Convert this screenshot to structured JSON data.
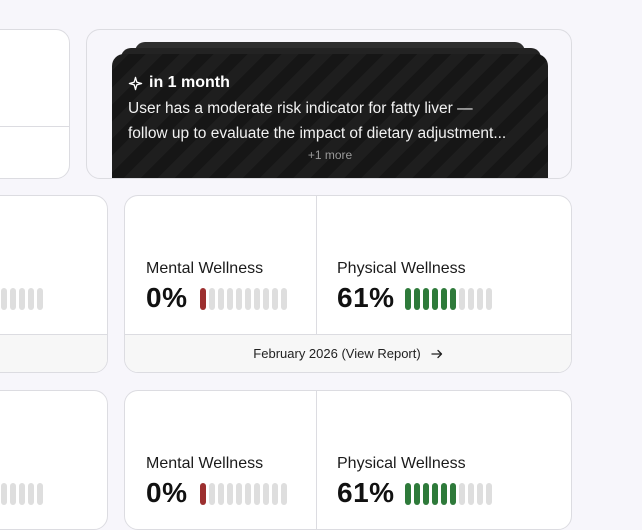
{
  "insight": {
    "timeframe": "in 1 month",
    "line1": "User has a moderate risk indicator for fatty liver —",
    "line2": "follow up to evaluate the impact of dietary adjustment...",
    "more": "+1 more"
  },
  "reports": [
    {
      "mental": {
        "label": "Mental Wellness",
        "value": "0%",
        "level": 0.0
      },
      "physical": {
        "label": "Physical Wellness",
        "value": "61%",
        "level": 0.61
      },
      "footer": "February 2026 (View Report)"
    },
    {
      "mental": {
        "label": "Mental Wellness",
        "value": "0%",
        "level": 0.0
      },
      "physical": {
        "label": "Physical Wellness",
        "value": "61%",
        "level": 0.61
      }
    }
  ],
  "colors": {
    "mental_bar": "#9c2f2f",
    "physical_bar": "#2e7a3a",
    "empty_bar": "#dedede"
  },
  "icons": {
    "insight": "sparkle-icon",
    "footer": "arrow-right-icon"
  }
}
